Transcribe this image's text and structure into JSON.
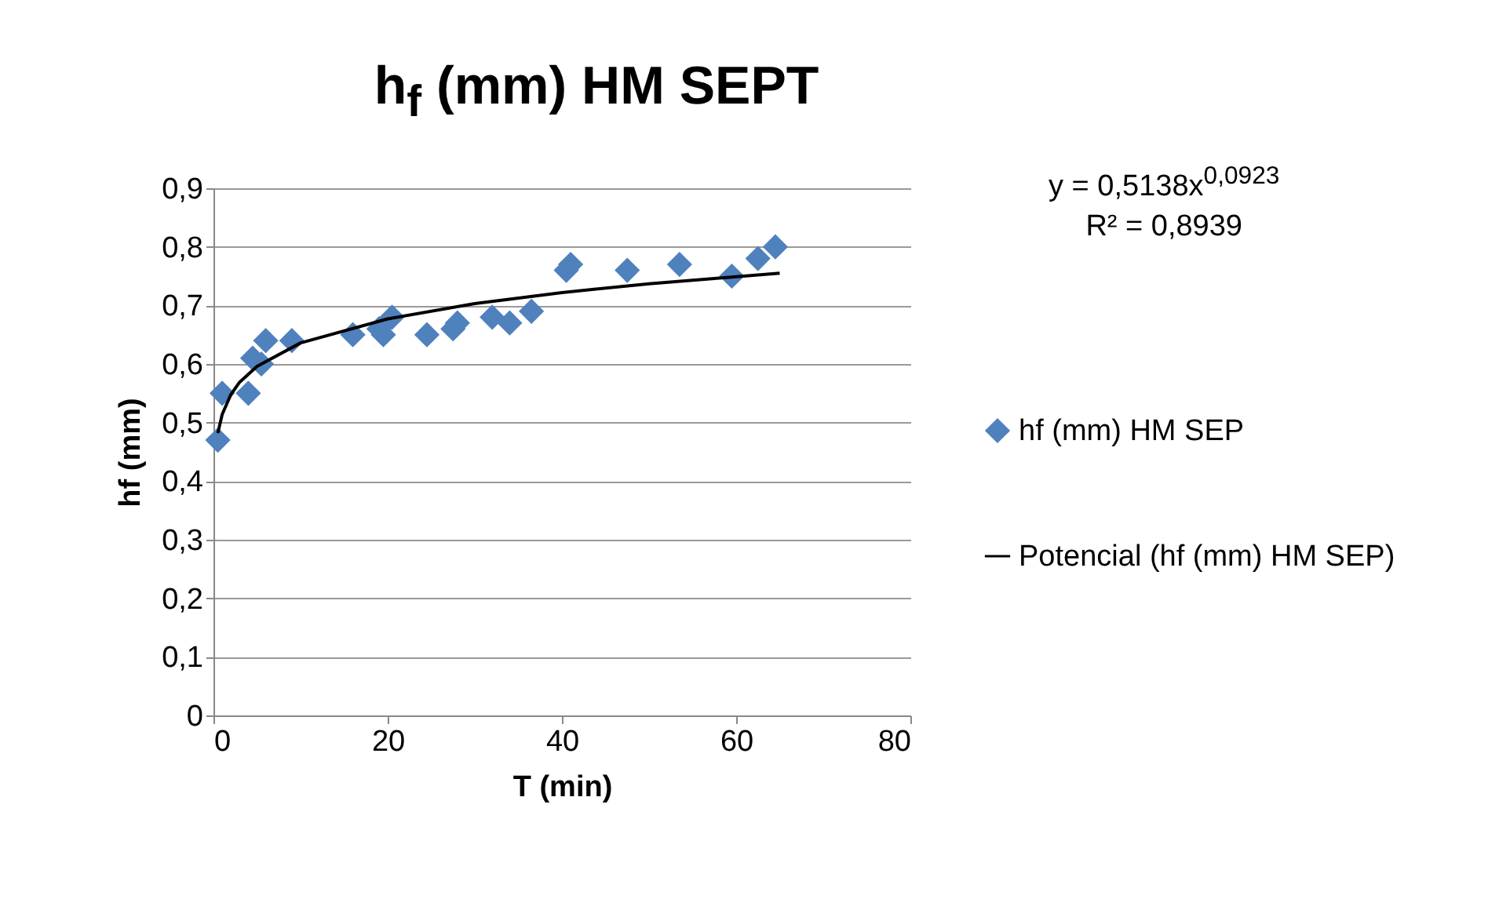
{
  "chart_data": {
    "type": "scatter",
    "title": "h$_{f}$ (mm) HM SEPT",
    "xlabel": "T (min)",
    "ylabel": "hf (mm)",
    "annotations": [
      "y = 0,5138x$^{0,0923}$",
      "R² = 0,8939"
    ],
    "xlim": [
      0,
      80
    ],
    "xticks": [
      0,
      20,
      40,
      60,
      80
    ],
    "ylim": [
      0,
      0.9
    ],
    "yticks": [
      {
        "value": 0,
        "label": "0"
      },
      {
        "value": 0.1,
        "label": "0,1"
      },
      {
        "value": 0.2,
        "label": "0,2"
      },
      {
        "value": 0.3,
        "label": "0,3"
      },
      {
        "value": 0.4,
        "label": "0,4"
      },
      {
        "value": 0.5,
        "label": "0,5"
      },
      {
        "value": 0.6,
        "label": "0,6"
      },
      {
        "value": 0.7,
        "label": "0,7"
      },
      {
        "value": 0.8,
        "label": "0,8"
      },
      {
        "value": 0.9,
        "label": "0,9"
      }
    ],
    "grid": "y",
    "legend": "right",
    "marker": "diamond",
    "series": [
      {
        "name": "hf (mm) HM SEP",
        "color": "#4f81bd",
        "x": [
          0.5,
          1,
          4,
          4.5,
          5.5,
          6,
          9,
          16,
          19,
          19.5,
          20.5,
          24.5,
          27.5,
          28,
          32,
          34,
          36.5,
          40.5,
          41,
          47.5,
          53.5,
          59.5,
          62.5,
          64.5
        ],
        "values": [
          0.47,
          0.55,
          0.55,
          0.61,
          0.6,
          0.64,
          0.64,
          0.65,
          0.66,
          0.65,
          0.68,
          0.65,
          0.66,
          0.67,
          0.68,
          0.67,
          0.69,
          0.76,
          0.77,
          0.76,
          0.77,
          0.75,
          0.78,
          0.8
        ]
      },
      {
        "name": "Potencial (hf (mm) HM SEP)",
        "type": "line",
        "color": "#000000",
        "line_style": "solid",
        "marker": "none",
        "x": [
          0.5,
          1,
          2,
          3,
          5,
          10,
          20,
          30,
          40,
          50,
          65
        ],
        "values": [
          0.482,
          0.514,
          0.548,
          0.569,
          0.596,
          0.636,
          0.677,
          0.703,
          0.722,
          0.737,
          0.755
        ]
      }
    ]
  }
}
